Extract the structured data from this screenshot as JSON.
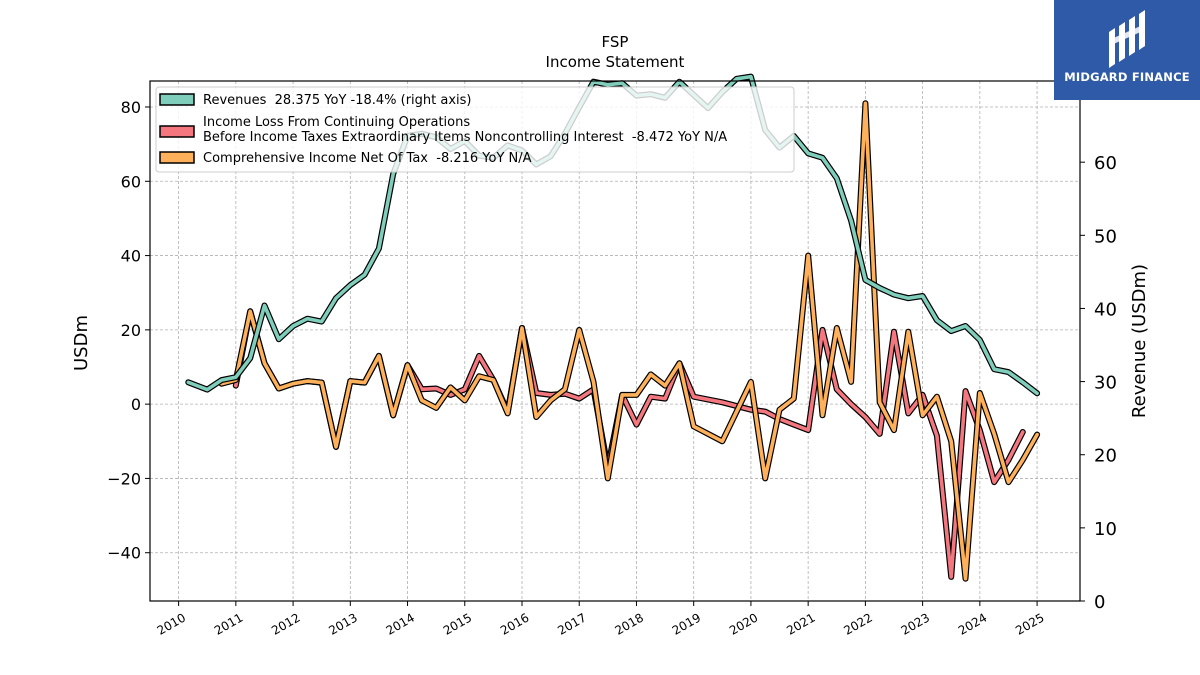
{
  "chart_data": {
    "type": "line",
    "title": "FSP",
    "subtitle": "Income Statement",
    "ylabel": "USDm",
    "y2label": "Revenue (USDm)",
    "ylim": [
      -53,
      87
    ],
    "y2lim": [
      0,
      71.1
    ],
    "xlim": [
      2009.5,
      2025.75
    ],
    "yticks": [
      -40,
      -20,
      0,
      20,
      40,
      60,
      80
    ],
    "y2ticks": [
      0,
      10,
      20,
      30,
      40,
      50,
      60
    ],
    "xticks": [
      2010,
      2011,
      2012,
      2013,
      2014,
      2015,
      2016,
      2017,
      2018,
      2019,
      2020,
      2021,
      2022,
      2023,
      2024,
      2025
    ],
    "xtick_labels": [
      "2010",
      "2011",
      "2012",
      "2013",
      "2014",
      "2015",
      "2016",
      "2017",
      "2018",
      "2019",
      "2020",
      "2021",
      "2022",
      "2023",
      "2024",
      "2025"
    ],
    "ytick_labels": [
      "80",
      "60",
      "40",
      "20",
      "0",
      "−20",
      "−40"
    ],
    "y2tick_labels": [
      "0",
      "10",
      "20",
      "30",
      "40",
      "50",
      "60"
    ],
    "grid": true,
    "legend_position": "top-left",
    "legend": [
      "Revenues  28.375 YoY -18.4% (right axis)",
      "Income Loss From Continuing Operations",
      "Before Income Taxes Extraordinary Items Noncontrolling Interest  -8.472 YoY N/A",
      "Comprehensive Income Net Of Tax  -8.216 YoY N/A"
    ],
    "series": [
      {
        "name": "Revenues  28.375 YoY -18.4% (right axis)",
        "axis": "right",
        "color": "#7fcdbb",
        "x": [
          2010.17,
          2010.5,
          2010.75,
          2011.0,
          2011.25,
          2011.5,
          2011.75,
          2012.0,
          2012.25,
          2012.5,
          2012.75,
          2013.0,
          2013.25,
          2013.5,
          2013.75,
          2014.0,
          2014.25,
          2014.5,
          2014.75,
          2015.0,
          2015.25,
          2015.5,
          2015.75,
          2016.0,
          2016.25,
          2016.5,
          2016.75,
          2017.0,
          2017.25,
          2017.5,
          2017.75,
          2018.0,
          2018.25,
          2018.5,
          2018.75,
          2019.0,
          2019.25,
          2019.5,
          2019.75,
          2020.0,
          2020.25,
          2020.5,
          2020.75,
          2021.0,
          2021.25,
          2021.5,
          2021.75,
          2022.0,
          2022.25,
          2022.5,
          2022.75,
          2023.0,
          2023.25,
          2023.5,
          2023.75,
          2024.0,
          2024.25,
          2024.5,
          2024.75,
          2025.0
        ],
        "values": [
          29.9,
          28.9,
          30.2,
          30.6,
          33.2,
          40.4,
          35.8,
          37.6,
          38.6,
          38.2,
          41.4,
          43.2,
          44.6,
          48.2,
          58.4,
          63.6,
          63.9,
          63.4,
          61.8,
          62.9,
          60.9,
          60.6,
          62.3,
          61.6,
          59.7,
          60.8,
          63.9,
          67.5,
          71.0,
          70.6,
          70.8,
          69.1,
          69.3,
          68.8,
          71.0,
          69.2,
          67.4,
          69.6,
          71.4,
          71.7,
          64.4,
          62.0,
          63.6,
          61.2,
          60.6,
          57.8,
          52.0,
          43.9,
          42.8,
          41.9,
          41.4,
          41.7,
          38.4,
          36.9,
          37.6,
          35.7,
          31.7,
          31.3,
          29.9,
          28.4
        ]
      },
      {
        "name": "Income Loss From Continuing Operations Before Income Taxes Extraordinary Items Noncontrolling Interest  -8.472 YoY N/A",
        "axis": "left",
        "color": "#f4777f",
        "x": [
          2011.0,
          2011.25,
          2011.5,
          2011.75,
          2012.0,
          2012.25,
          2012.5,
          2012.75,
          2013.0,
          2013.25,
          2013.5,
          2013.75,
          2014.0,
          2014.25,
          2014.5,
          2014.75,
          2015.0,
          2015.25,
          2015.5,
          2015.75,
          2016.0,
          2016.25,
          2016.5,
          2016.75,
          2017.0,
          2017.25,
          2017.5,
          2017.75,
          2018.0,
          2018.25,
          2018.5,
          2018.75,
          2019.0,
          2019.5,
          2020.0,
          2020.25,
          2020.5,
          2020.75,
          2021.0,
          2021.25,
          2021.5,
          2021.75,
          2022.0,
          2022.25,
          2022.5,
          2022.75,
          2023.0,
          2023.25,
          2023.5,
          2023.75,
          2024.0,
          2024.25,
          2024.5,
          2024.75,
          2025.0
        ],
        "values": [
          5.0,
          25.0,
          11.0,
          4.2,
          5.5,
          6.2,
          5.8,
          -11.5,
          6.2,
          5.8,
          13.0,
          -3.0,
          10.5,
          4.0,
          4.2,
          2.5,
          4.0,
          13.0,
          6.5,
          -2.0,
          20.5,
          3.0,
          2.5,
          2.8,
          1.5,
          4.0,
          -17.0,
          2.5,
          -5.5,
          2.0,
          1.5,
          11.0,
          2.0,
          0.5,
          -1.5,
          -2.0,
          -4.0,
          -5.5,
          -7.0,
          20.0,
          4.0,
          0.0,
          -3.5,
          -8.0,
          19.5,
          -2.5,
          2.5,
          -8.5,
          -46.5,
          3.5,
          -7.0,
          -21.0,
          -15.0,
          -7.5,
          null
        ]
      },
      {
        "name": "Comprehensive Income Net Of Tax  -8.216 YoY N/A",
        "axis": "left",
        "color": "#feb05a",
        "x": [
          2010.75,
          2011.0,
          2011.25,
          2011.5,
          2011.75,
          2012.0,
          2012.25,
          2012.5,
          2012.75,
          2013.0,
          2013.25,
          2013.5,
          2013.75,
          2014.0,
          2014.25,
          2014.5,
          2014.75,
          2015.0,
          2015.25,
          2015.5,
          2015.75,
          2016.0,
          2016.25,
          2016.5,
          2016.75,
          2017.0,
          2017.25,
          2017.5,
          2017.75,
          2018.0,
          2018.25,
          2018.5,
          2018.75,
          2019.0,
          2019.5,
          2020.0,
          2020.25,
          2020.5,
          2020.75,
          2021.0,
          2021.25,
          2021.5,
          2021.75,
          2022.0,
          2022.25,
          2022.5,
          2022.75,
          2023.0,
          2023.25,
          2023.5,
          2023.75,
          2024.0,
          2024.25,
          2024.5,
          2024.75,
          2025.0
        ],
        "values": [
          5.5,
          6.5,
          25.0,
          11.0,
          4.2,
          5.5,
          6.2,
          5.8,
          -11.5,
          6.2,
          5.8,
          13.0,
          -3.0,
          10.5,
          1.0,
          -1.0,
          4.5,
          1.0,
          7.5,
          6.5,
          -2.5,
          20.5,
          -3.5,
          1.0,
          4.0,
          20.0,
          6.0,
          -20.0,
          2.5,
          2.5,
          8.0,
          5.0,
          11.0,
          -6.0,
          -10.0,
          6.0,
          -20.0,
          -1.5,
          1.5,
          40.0,
          -3.0,
          20.5,
          6.0,
          81.0,
          0.5,
          -7.0,
          19.5,
          -3.0,
          2.0,
          -10.0,
          -47.0,
          3.0,
          -8.0,
          -21.0,
          -15.0,
          -8.2
        ]
      }
    ]
  },
  "brand": {
    "name": "MIDGARD FINANCE",
    "bg_color": "#2f5aa8"
  }
}
